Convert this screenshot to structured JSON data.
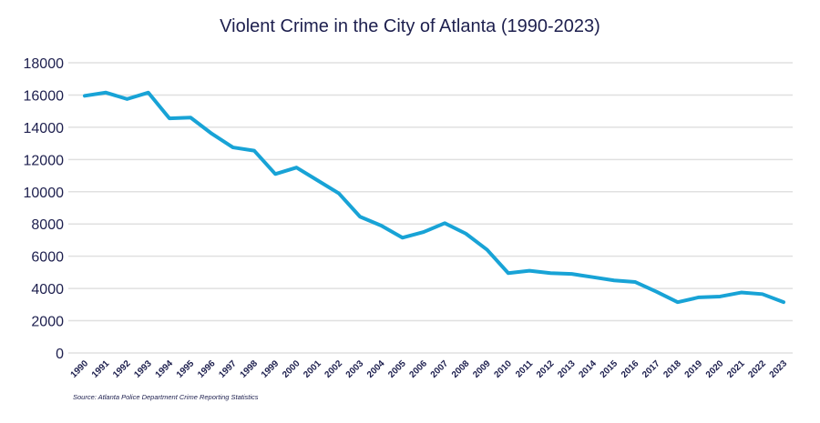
{
  "chart_data": {
    "type": "line",
    "title": "Violent Crime in the City of Atlanta (1990-2023)",
    "xlabel": "",
    "ylabel": "",
    "ylim": [
      0,
      18000
    ],
    "yticks": [
      "0",
      "2000",
      "4000",
      "6000",
      "8000",
      "10000",
      "12000",
      "14000",
      "16000",
      "18000"
    ],
    "grid": true,
    "categories": [
      "1990",
      "1991",
      "1992",
      "1993",
      "1994",
      "1995",
      "1996",
      "1997",
      "1998",
      "1999",
      "2000",
      "2001",
      "2002",
      "2003",
      "2004",
      "2005",
      "2006",
      "2007",
      "2008",
      "2009",
      "2010",
      "2011",
      "2012",
      "2013",
      "2014",
      "2015",
      "2016",
      "2017",
      "2018",
      "2019",
      "2020",
      "2021",
      "2022",
      "2023"
    ],
    "series": [
      {
        "name": "Violent Crime",
        "color": "#18a3d6",
        "values": [
          15950,
          16150,
          15750,
          16150,
          14550,
          14600,
          13600,
          12750,
          12550,
          11100,
          11500,
          10700,
          9900,
          8450,
          7900,
          7150,
          7500,
          8050,
          7400,
          6400,
          4950,
          5100,
          4950,
          4900,
          4700,
          4500,
          4400,
          3800,
          3150,
          3450,
          3500,
          3750,
          3650,
          3150
        ]
      }
    ],
    "source": "Source: Atlanta Police Department Crime Reporting Statistics"
  }
}
